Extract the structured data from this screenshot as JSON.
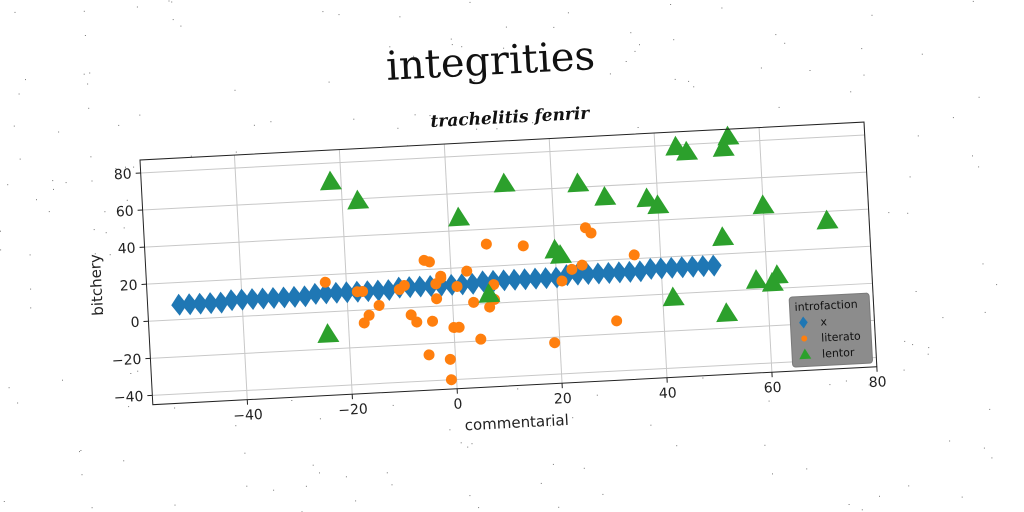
{
  "title": "integrities",
  "subtitle": "trachelitis fenrir",
  "chart_data": {
    "type": "scatter",
    "xlabel": "commentarial",
    "ylabel": "bitchery",
    "xlim": [
      -58,
      80
    ],
    "ylim": [
      -45,
      87
    ],
    "xticks": [
      -40,
      -20,
      0,
      20,
      40,
      60,
      80
    ],
    "yticks": [
      -40,
      -20,
      0,
      20,
      40,
      60,
      80
    ],
    "grid": true,
    "legend": {
      "title": "introfaction",
      "placement": "lower-right"
    },
    "series": [
      {
        "name": "x",
        "marker": "diamond",
        "color": "#1f77b4",
        "x": [
          -52,
          -50,
          -48,
          -46,
          -44,
          -42,
          -40,
          -38,
          -36,
          -34,
          -32,
          -30,
          -28,
          -26,
          -24,
          -22,
          -20,
          -18,
          -16,
          -14,
          -12,
          -10,
          -8,
          -6,
          -4,
          -2,
          0,
          2,
          4,
          6,
          8,
          10,
          12,
          14,
          16,
          18,
          20,
          22,
          24,
          26,
          28,
          30,
          32,
          34,
          36,
          38,
          40,
          42,
          44,
          46,
          48,
          50
        ],
        "y": [
          8,
          8,
          8,
          8,
          8,
          9,
          9,
          9,
          9,
          9,
          9,
          9,
          9,
          10,
          10,
          10,
          10,
          10,
          10,
          10,
          10,
          11,
          11,
          11,
          11,
          11,
          11,
          11,
          11,
          12,
          12,
          12,
          12,
          12,
          12,
          12,
          12,
          13,
          13,
          13,
          13,
          13,
          13,
          13,
          13,
          14,
          14,
          14,
          14,
          14,
          14,
          14
        ]
      },
      {
        "name": "literato",
        "marker": "circle",
        "color": "#ff7f0e",
        "x": [
          -24,
          -18,
          -17,
          -16,
          -17,
          -14,
          -10,
          -9,
          -8,
          -7,
          -5,
          -5,
          -4,
          -4,
          -3,
          -3,
          -2,
          -2,
          -1,
          1,
          0,
          -1,
          1,
          3,
          4,
          5,
          7,
          7,
          8,
          8,
          14,
          19,
          21,
          23,
          25,
          26,
          27,
          31,
          35
        ],
        "y": [
          16,
          10,
          10,
          -3,
          -7,
          2,
          10,
          12,
          -4,
          -8,
          25,
          -26,
          -8,
          24,
          4,
          12,
          16,
          15,
          -29,
          -12,
          -12,
          -40,
          10,
          18,
          1,
          -19,
          32,
          -2,
          2,
          10,
          30,
          -23,
          10,
          16,
          18,
          38,
          35,
          -13,
          22
        ]
      },
      {
        "name": "lentor",
        "marker": "triangle",
        "color": "#2ca02c",
        "x": [
          -24,
          -22,
          -17,
          2,
          7,
          11,
          20,
          21,
          25,
          30,
          38,
          40,
          42,
          44,
          46,
          52,
          52,
          53,
          54,
          58,
          60,
          61,
          62,
          72
        ],
        "y": [
          -12,
          70,
          59,
          47,
          5,
          64,
          27,
          24,
          62,
          54,
          52,
          48,
          -2,
          79,
          76,
          -12,
          29,
          77,
          83,
          5,
          45,
          3,
          7,
          35
        ]
      }
    ]
  }
}
